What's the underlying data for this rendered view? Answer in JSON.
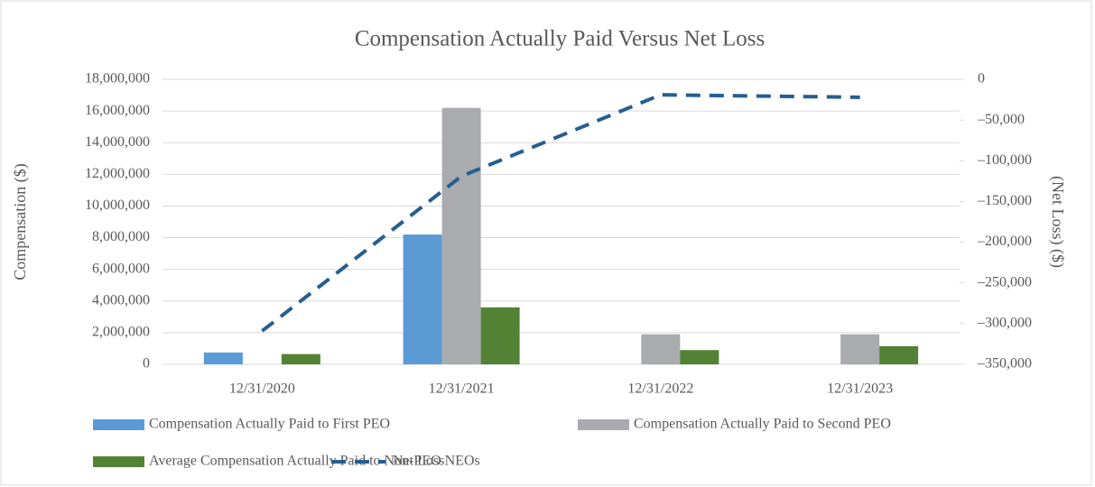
{
  "chart_data": {
    "type": "bar",
    "title": "Compensation Actually Paid Versus Net Loss",
    "y_label": "Compensation ($)",
    "y2_label": "(Net Loss) ($)",
    "categories": [
      "12/31/2020",
      "12/31/2021",
      "12/31/2022",
      "12/31/2023"
    ],
    "series": [
      {
        "name": "Compensation Actually Paid to First PEO",
        "color": "#5b9bd5",
        "values": [
          750000,
          8200000,
          null,
          null
        ]
      },
      {
        "name": "Compensation Actually Paid to Second PEO",
        "color": "#a9abae",
        "values": [
          null,
          16200000,
          1900000,
          1900000
        ]
      },
      {
        "name": "Average Compensation Actually Paid to Non-PEO NEOs",
        "color": "#548235",
        "values": [
          650000,
          3600000,
          900000,
          1150000
        ]
      },
      {
        "name": "Net Loss",
        "type": "line",
        "axis": "y2",
        "color": "#255e91",
        "dashed": true,
        "values": [
          -309000,
          -119000,
          -19000,
          -22000
        ]
      }
    ],
    "ylim": [
      0,
      18000000
    ],
    "yticks": [
      0,
      {
        "value": 2000000,
        "label": "2,000,000"
      },
      {
        "value": 4000000,
        "label": "4,000,000"
      },
      {
        "value": 6000000,
        "label": "6,000,000"
      },
      {
        "value": 8000000,
        "label": "8,000,000"
      },
      {
        "value": 10000000,
        "label": "10,000,000"
      },
      {
        "value": 12000000,
        "label": "12,000,000"
      },
      {
        "value": 14000000,
        "label": "14,000,000"
      },
      {
        "value": 16000000,
        "label": "16,000,000"
      },
      {
        "value": 18000000,
        "label": "18,000,000"
      }
    ],
    "y2lim": [
      -350000,
      0
    ],
    "y2ticks": [
      0,
      {
        "value": -50000,
        "label": "–50,000"
      },
      {
        "value": -100000,
        "label": "–100,000"
      },
      {
        "value": -150000,
        "label": "–150,000"
      },
      {
        "value": -200000,
        "label": "–200,000"
      },
      {
        "value": -250000,
        "label": "–250,000"
      },
      {
        "value": -300000,
        "label": "–300,000"
      },
      {
        "value": -350000,
        "label": "–350,000"
      }
    ],
    "grid": true
  }
}
